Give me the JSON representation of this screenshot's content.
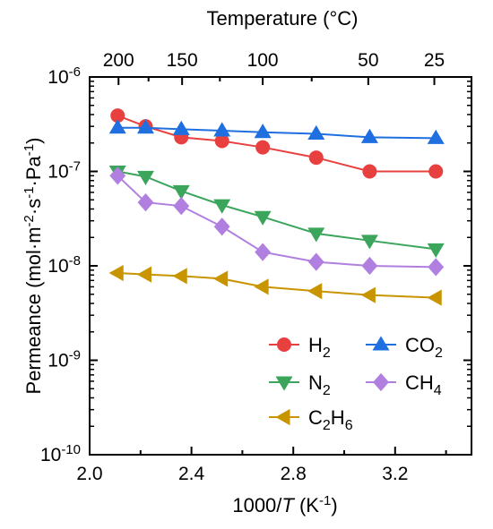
{
  "chart_data": {
    "type": "scatter",
    "xlabel": "1000/T (K-1)",
    "ylabel": "Permeance (mol·m-2·s-1·Pa-1)",
    "x2label": "Temperature (°C)",
    "xlim": [
      2.0,
      3.5
    ],
    "ylim": [
      1e-10,
      1e-06
    ],
    "yscale": "log",
    "grid": false,
    "legend_position": "bottom-right",
    "x_ticks": [
      2.0,
      2.4,
      2.8,
      3.2
    ],
    "y_ticks": [
      1e-10,
      1e-09,
      1e-08,
      1e-07,
      1e-06
    ],
    "top_ticks": [
      200,
      150,
      100,
      50,
      25
    ],
    "series": [
      {
        "name": "H2",
        "color": "#E8403F",
        "marker": "circle",
        "x": [
          2.11,
          2.22,
          2.36,
          2.52,
          2.68,
          2.89,
          3.1,
          3.36
        ],
        "y": [
          3.9e-07,
          3e-07,
          2.3e-07,
          2.1e-07,
          1.8e-07,
          1.4e-07,
          1e-07,
          1e-07
        ]
      },
      {
        "name": "CO2",
        "color": "#1F6FE0",
        "marker": "triangle-up",
        "x": [
          2.11,
          2.22,
          2.36,
          2.52,
          2.68,
          2.89,
          3.1,
          3.36
        ],
        "y": [
          2.9e-07,
          2.9e-07,
          2.8e-07,
          2.7e-07,
          2.6e-07,
          2.5e-07,
          2.3e-07,
          2.25e-07
        ]
      },
      {
        "name": "N2",
        "color": "#3BA55C",
        "marker": "triangle-down",
        "x": [
          2.11,
          2.22,
          2.36,
          2.52,
          2.68,
          2.89,
          3.1,
          3.36
        ],
        "y": [
          1e-07,
          8.8e-08,
          6.2e-08,
          4.4e-08,
          3.3e-08,
          2.2e-08,
          1.85e-08,
          1.5e-08
        ]
      },
      {
        "name": "CH4",
        "color": "#B07FE0",
        "marker": "diamond",
        "x": [
          2.11,
          2.22,
          2.36,
          2.52,
          2.68,
          2.89,
          3.1,
          3.36
        ],
        "y": [
          9e-08,
          4.7e-08,
          4.3e-08,
          2.6e-08,
          1.4e-08,
          1.1e-08,
          1e-08,
          9.7e-09
        ]
      },
      {
        "name": "C2H6",
        "color": "#C89500",
        "marker": "triangle-left",
        "x": [
          2.11,
          2.22,
          2.36,
          2.52,
          2.68,
          2.89,
          3.1,
          3.36
        ],
        "y": [
          8.4e-09,
          8.1e-09,
          7.8e-09,
          7.3e-09,
          6e-09,
          5.4e-09,
          4.9e-09,
          4.6e-09
        ]
      }
    ]
  }
}
